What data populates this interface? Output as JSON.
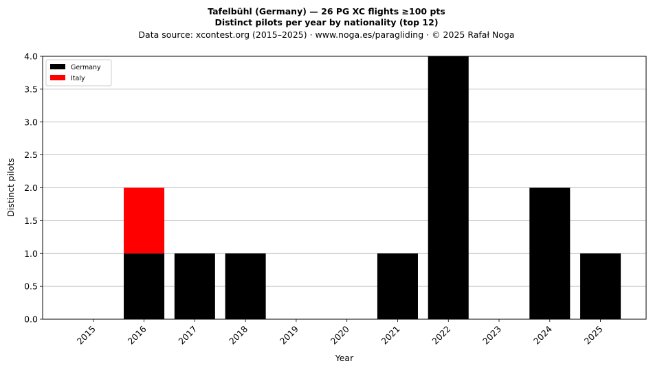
{
  "chart_data": {
    "type": "bar",
    "stacked": true,
    "title": "Tafelbühl (Germany)  —  26 PG XC flights ≥100 pts",
    "subtitle": "Distinct pilots per year by nationality (top 12)",
    "source": "Data source: xcontest.org (2015–2025)  ·  www.noga.es/paragliding  ·  © 2025 Rafał Noga",
    "xlabel": "Year",
    "ylabel": "Distinct pilots",
    "categories": [
      "2015",
      "2016",
      "2017",
      "2018",
      "2019",
      "2020",
      "2021",
      "2022",
      "2023",
      "2024",
      "2025"
    ],
    "series": [
      {
        "name": "Germany",
        "color": "#000000",
        "values": [
          0,
          1,
          1,
          1,
          0,
          0,
          1,
          4,
          0,
          2,
          1
        ]
      },
      {
        "name": "Italy",
        "color": "#ff0000",
        "values": [
          0,
          1,
          0,
          0,
          0,
          0,
          0,
          0,
          0,
          0,
          0
        ]
      }
    ],
    "ylim": [
      0,
      4.0
    ],
    "yticks": [
      "0.0",
      "0.5",
      "1.0",
      "1.5",
      "2.0",
      "2.5",
      "3.0",
      "3.5",
      "4.0"
    ],
    "grid": "y",
    "legend_position": "top-left"
  }
}
